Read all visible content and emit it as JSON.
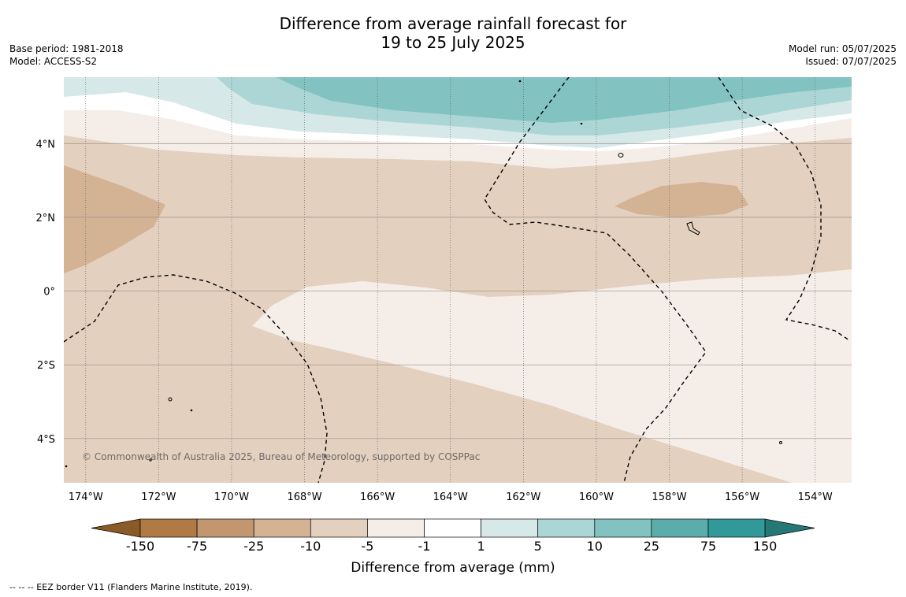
{
  "title": {
    "line1": "Difference from average rainfall forecast for",
    "line2": "19 to 25 July 2025"
  },
  "meta": {
    "base_period": "Base period: 1981-2018",
    "model": "Model: ACCESS-S2",
    "model_run": "Model run: 05/07/2025",
    "issued": "Issued: 07/07/2025"
  },
  "map": {
    "lon_range": [
      -174.6,
      -153.0
    ],
    "lat_range": [
      -5.2,
      5.8
    ],
    "lon_ticks": [
      "174°W",
      "172°W",
      "170°W",
      "168°W",
      "166°W",
      "164°W",
      "162°W",
      "160°W",
      "158°W",
      "156°W",
      "154°W"
    ],
    "lat_ticks": [
      "4°N",
      "2°N",
      "0°",
      "2°S",
      "4°S"
    ],
    "copyright": "© Commonwealth of Australia 2025, Bureau of Meteorology, supported by COSPPac"
  },
  "colorbar": {
    "title": "Difference from average (mm)",
    "labels": [
      "-150",
      "-75",
      "-25",
      "-10",
      "-5",
      "-1",
      "1",
      "5",
      "10",
      "25",
      "75",
      "150"
    ],
    "colors": [
      "#8c5a26",
      "#b07a45",
      "#c39670",
      "#d4b294",
      "#e3d0bf",
      "#f5ede8",
      "#ffffff",
      "#d6e9e8",
      "#acd6d5",
      "#82c2c0",
      "#5aadab",
      "#31999a",
      "#267876"
    ]
  },
  "footnote": "--  --  -- EEZ border V11 (Flanders Marine Institute, 2019)."
}
